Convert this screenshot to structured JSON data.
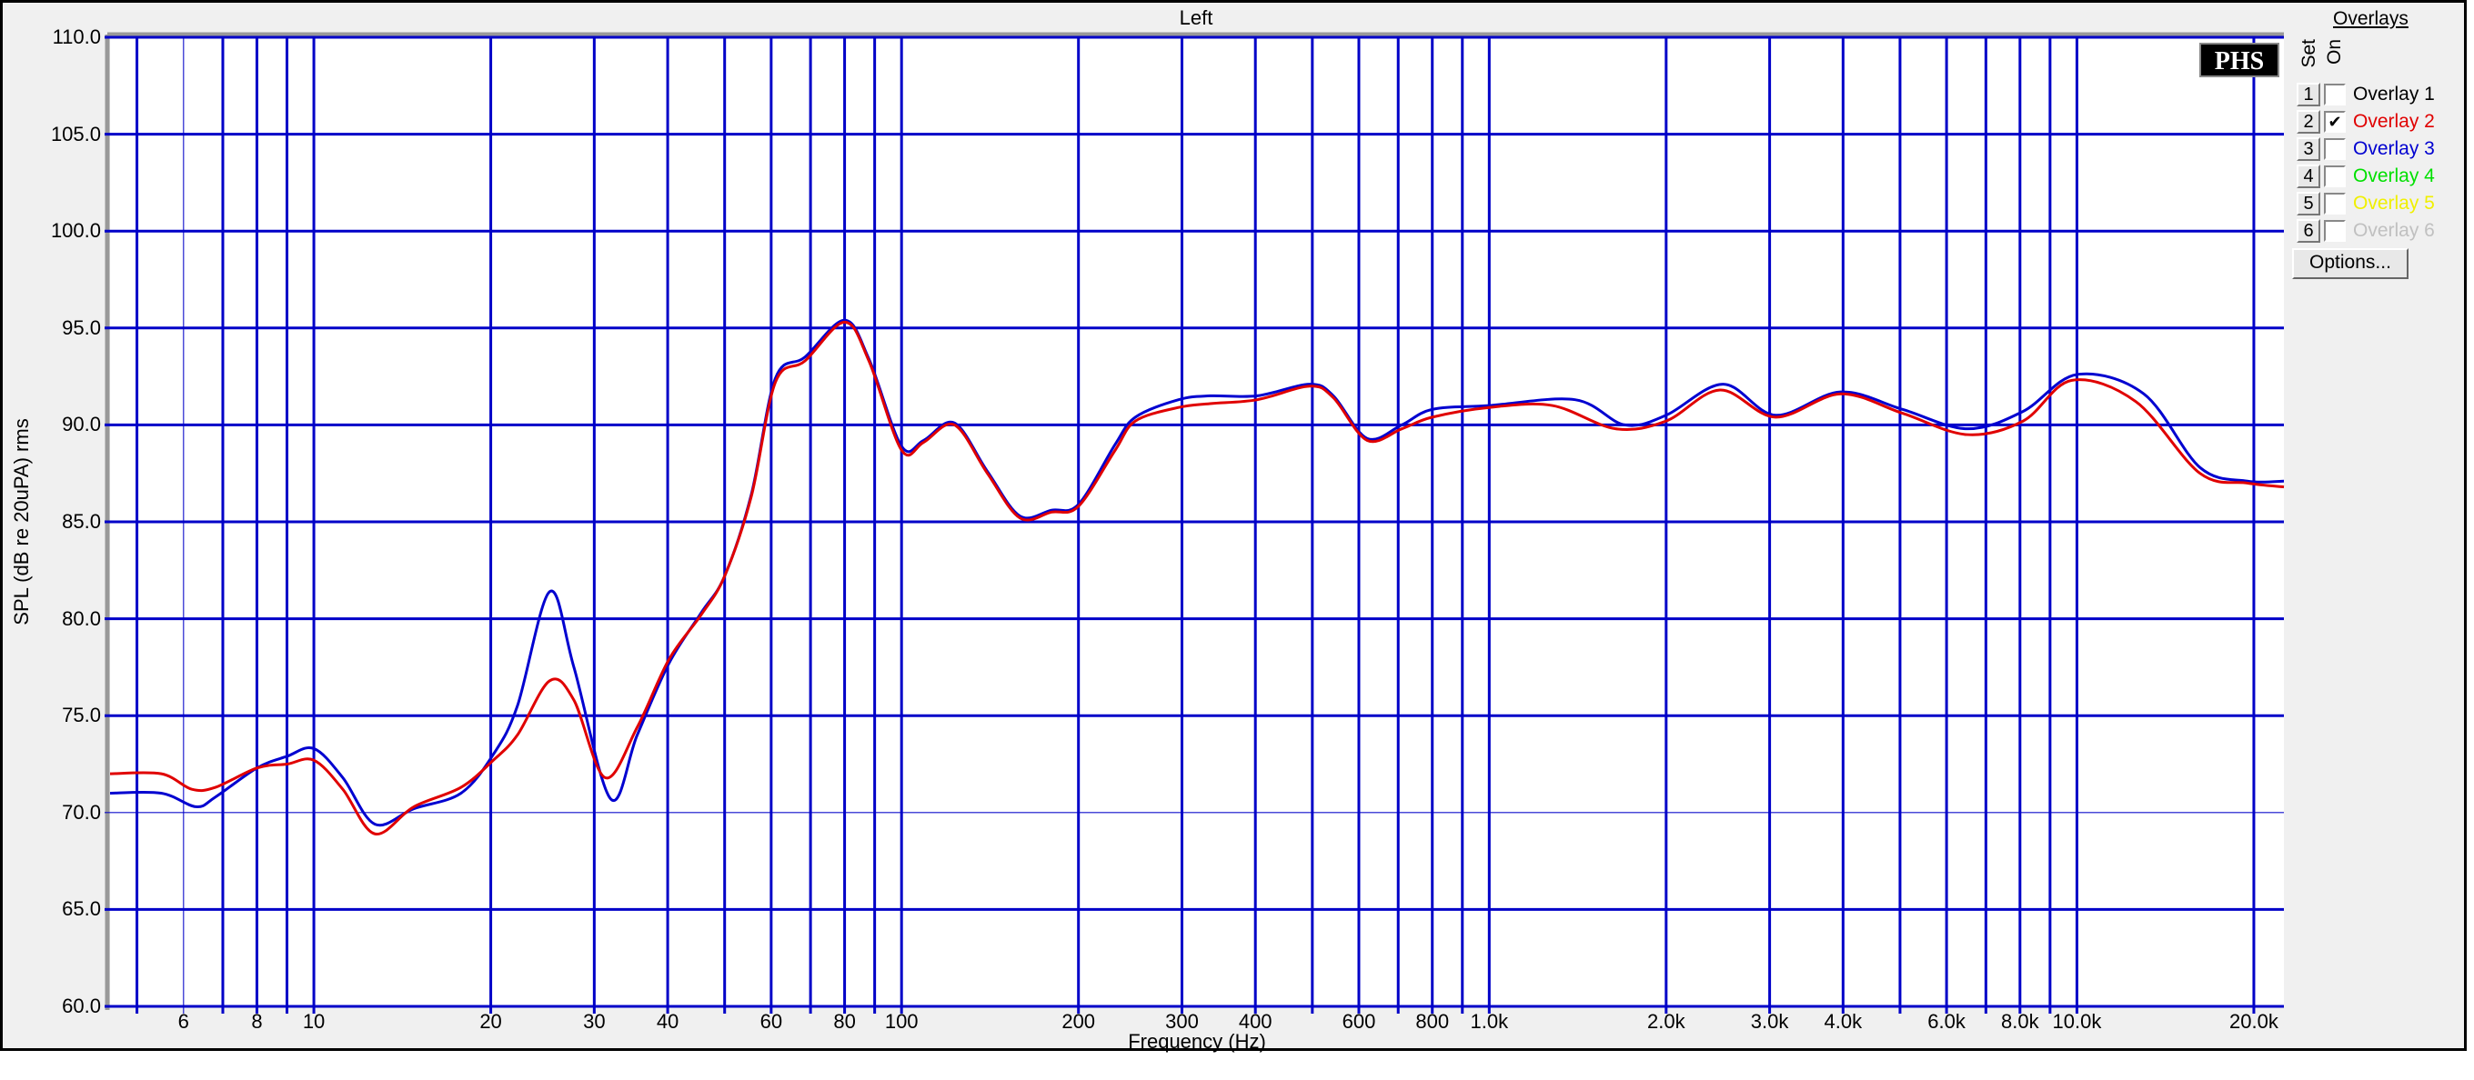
{
  "chart_data": {
    "type": "line",
    "title": "Left",
    "xlabel": "Frequency (Hz)",
    "ylabel": "SPL (dB re 20uPA) rms",
    "xscale": "log",
    "xlim": [
      4.5,
      22500
    ],
    "ylim": [
      60,
      110
    ],
    "grid": true,
    "y_ticks": [
      "110.0",
      "105.0",
      "100.0",
      "95.0",
      "90.0",
      "85.0",
      "80.0",
      "75.0",
      "70.0",
      "65.0",
      "60.0"
    ],
    "x_ticks": [
      {
        "value": 6,
        "label": "6"
      },
      {
        "value": 8,
        "label": "8"
      },
      {
        "value": 10,
        "label": "10"
      },
      {
        "value": 20,
        "label": "20"
      },
      {
        "value": 30,
        "label": "30"
      },
      {
        "value": 40,
        "label": "40"
      },
      {
        "value": 60,
        "label": "60"
      },
      {
        "value": 80,
        "label": "80"
      },
      {
        "value": 100,
        "label": "100"
      },
      {
        "value": 200,
        "label": "200"
      },
      {
        "value": 300,
        "label": "300"
      },
      {
        "value": 400,
        "label": "400"
      },
      {
        "value": 600,
        "label": "600"
      },
      {
        "value": 800,
        "label": "800"
      },
      {
        "value": 1000,
        "label": "1.0k"
      },
      {
        "value": 2000,
        "label": "2.0k"
      },
      {
        "value": 3000,
        "label": "3.0k"
      },
      {
        "value": 4000,
        "label": "4.0k"
      },
      {
        "value": 6000,
        "label": "6.0k"
      },
      {
        "value": 8000,
        "label": "8.0k"
      },
      {
        "value": 10000,
        "label": "10.0k"
      },
      {
        "value": 20000,
        "label": "20.0k"
      }
    ],
    "x_gridlines": [
      5,
      6,
      7,
      8,
      9,
      10,
      20,
      30,
      40,
      50,
      60,
      70,
      80,
      90,
      100,
      200,
      300,
      400,
      500,
      600,
      700,
      800,
      900,
      1000,
      2000,
      3000,
      4000,
      5000,
      6000,
      7000,
      8000,
      9000,
      10000,
      20000
    ],
    "series": [
      {
        "name": "Overlay 2",
        "color": "#e00000",
        "x": [
          4.5,
          5.5,
          6.2,
          6.8,
          8,
          9,
          10,
          11.2,
          12.7,
          14.8,
          17.8,
          20.2,
          22.2,
          25.2,
          27.7,
          31.3,
          35.5,
          40.2,
          45.6,
          50,
          55.5,
          61,
          68.5,
          80,
          88,
          100,
          109,
          123,
          140,
          159,
          180,
          200,
          231,
          250,
          296,
          335,
          403,
          495,
          543,
          620,
          710,
          800,
          1000,
          1280,
          1640,
          2000,
          2470,
          3070,
          3960,
          5050,
          6500,
          8100,
          9800,
          12600,
          16200,
          19500,
          22500
        ],
        "y": [
          72.0,
          72.0,
          71.2,
          71.3,
          72.3,
          72.5,
          72.7,
          71.2,
          68.9,
          70.3,
          71.3,
          72.7,
          74.0,
          76.8,
          75.8,
          71.8,
          74.4,
          77.9,
          80.2,
          82.2,
          86.3,
          92.2,
          93.3,
          95.3,
          93.3,
          88.7,
          89.1,
          90.0,
          87.5,
          85.2,
          85.5,
          85.8,
          88.7,
          90.2,
          90.9,
          91.1,
          91.3,
          92.0,
          91.4,
          89.2,
          89.8,
          90.4,
          90.9,
          91.0,
          89.8,
          90.2,
          91.8,
          90.4,
          91.6,
          90.6,
          89.5,
          90.2,
          92.3,
          91.2,
          87.5,
          87.0,
          86.8
        ]
      },
      {
        "name": "Overlay 3",
        "color": "#0000d0",
        "x": [
          4.5,
          5.5,
          6.3,
          6.8,
          8,
          9,
          10,
          11.2,
          12.7,
          14.8,
          17.8,
          20.2,
          22.2,
          25.2,
          27.7,
          32,
          35.5,
          40.2,
          45.6,
          50,
          55.5,
          61,
          68.5,
          80,
          88,
          100,
          109,
          123,
          140,
          159,
          180,
          200,
          231,
          250,
          296,
          335,
          403,
          495,
          543,
          620,
          710,
          800,
          1000,
          1400,
          1700,
          2000,
          2500,
          3070,
          3960,
          5050,
          6500,
          8100,
          10000,
          13000,
          16200,
          19500,
          22500
        ],
        "y": [
          71.0,
          71.0,
          70.3,
          70.8,
          72.3,
          72.9,
          73.3,
          71.8,
          69.4,
          70.2,
          71.0,
          73.0,
          75.5,
          81.4,
          77.5,
          70.7,
          74.0,
          77.7,
          80.3,
          82.2,
          86.4,
          92.4,
          93.5,
          95.4,
          93.4,
          88.9,
          89.2,
          90.1,
          87.6,
          85.3,
          85.6,
          85.9,
          89.0,
          90.4,
          91.3,
          91.5,
          91.5,
          92.1,
          91.5,
          89.3,
          90.0,
          90.8,
          91.0,
          91.3,
          90.0,
          90.5,
          92.1,
          90.5,
          91.7,
          90.8,
          89.8,
          90.7,
          92.6,
          91.6,
          87.8,
          87.1,
          87.1
        ]
      }
    ]
  },
  "overlays": {
    "title": "Overlays",
    "set_label": "Set",
    "on_label": "On",
    "items": [
      {
        "set": "1",
        "label": "Overlay 1",
        "on": false,
        "color": "#000000"
      },
      {
        "set": "2",
        "label": "Overlay 2",
        "on": true,
        "color": "#e00000"
      },
      {
        "set": "3",
        "label": "Overlay 3",
        "on": false,
        "color": "#0000d0"
      },
      {
        "set": "4",
        "label": "Overlay 4",
        "on": false,
        "color": "#00e000"
      },
      {
        "set": "5",
        "label": "Overlay 5",
        "on": false,
        "color": "#f0f000"
      },
      {
        "set": "6",
        "label": "Overlay 6",
        "on": false,
        "color": "#c0c0c0"
      }
    ],
    "options_label": "Options..."
  },
  "logo": "PHS",
  "grid_color": "#0000c8"
}
